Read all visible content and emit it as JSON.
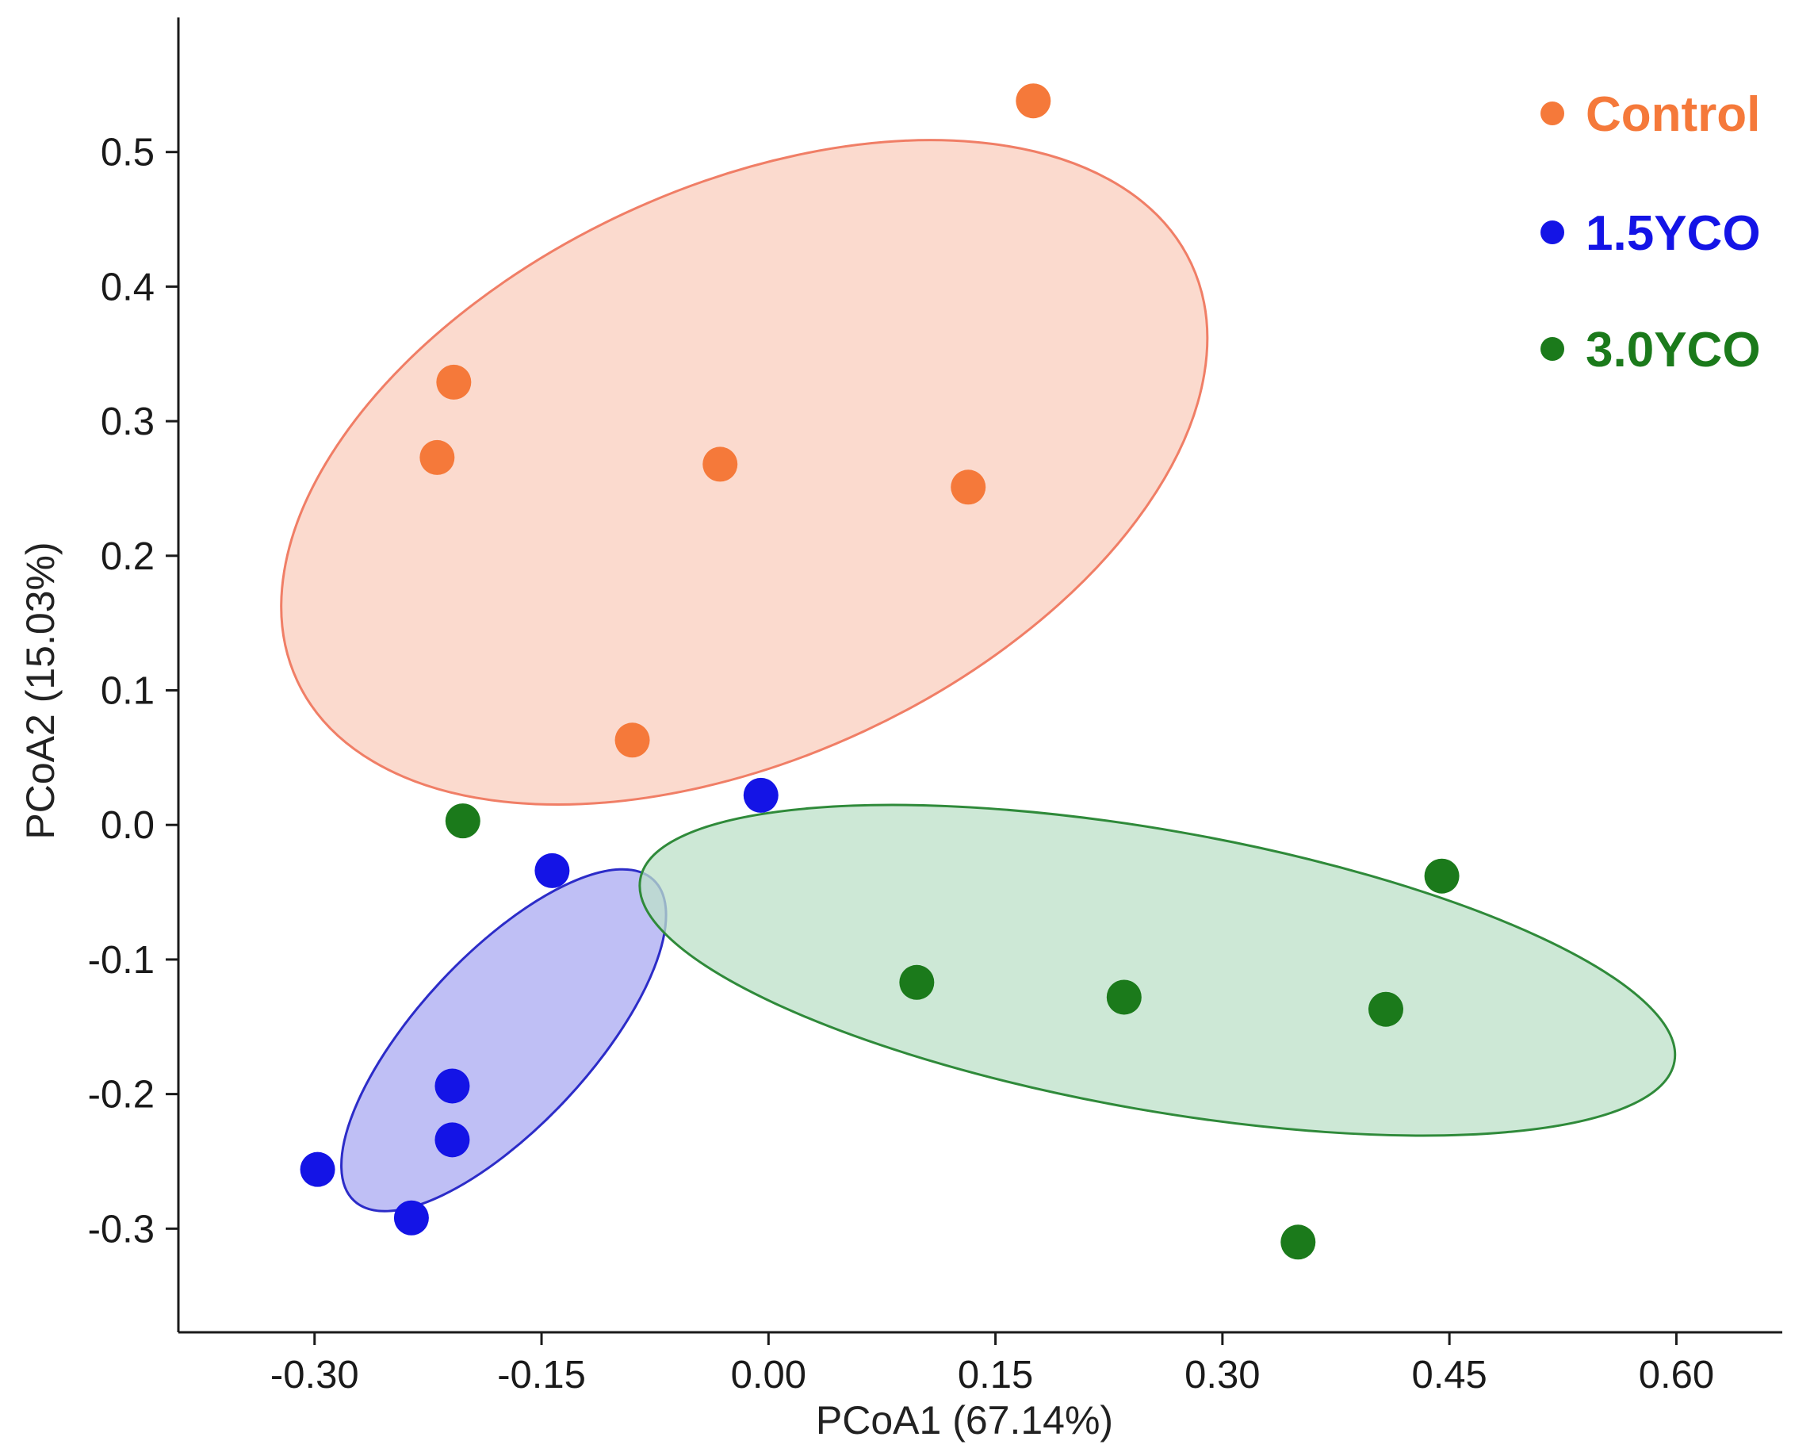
{
  "chart_data": {
    "type": "scatter",
    "title": "",
    "xlabel": "PCoA1 (67.14%)",
    "ylabel": "PCoA2 (15.03%)",
    "xlim": [
      -0.39,
      0.67
    ],
    "ylim": [
      -0.377,
      0.6
    ],
    "xticks": [
      -0.3,
      -0.15,
      0.0,
      0.15,
      0.3,
      0.45,
      0.6
    ],
    "xtick_labels": [
      "-0.30",
      "-0.15",
      "0.00",
      "0.15",
      "0.30",
      "0.45",
      "0.60"
    ],
    "yticks": [
      -0.3,
      -0.2,
      -0.1,
      0.0,
      0.1,
      0.2,
      0.3,
      0.4,
      0.5
    ],
    "ytick_labels": [
      "-0.3",
      "-0.2",
      "-0.1",
      "0.0",
      "0.1",
      "0.2",
      "0.3",
      "0.4",
      "0.5"
    ],
    "grid": false,
    "legend_position": "top-right",
    "series": [
      {
        "name": "Control",
        "color": "#F5793A",
        "ellipse_fill": "#F9CDBE",
        "ellipse_stroke": "#F07E66",
        "ellipse": {
          "center": [
            -0.016,
            0.262
          ],
          "semi_axes": [
            0.326,
            0.212
          ],
          "angle_deg": 25
        },
        "points": [
          {
            "x": 0.175,
            "y": 0.538
          },
          {
            "x": -0.208,
            "y": 0.329
          },
          {
            "x": -0.219,
            "y": 0.273
          },
          {
            "x": -0.032,
            "y": 0.268
          },
          {
            "x": 0.132,
            "y": 0.251
          },
          {
            "x": -0.09,
            "y": 0.063
          }
        ]
      },
      {
        "name": "1.5YCO",
        "color": "#1414E6",
        "ellipse_fill": "#AAAAF2",
        "ellipse_stroke": "#2C2CC8",
        "ellipse": {
          "center": [
            -0.175,
            -0.16
          ],
          "semi_axes": [
            0.145,
            0.064
          ],
          "angle_deg": 47
        },
        "points": [
          {
            "x": -0.005,
            "y": 0.022
          },
          {
            "x": -0.143,
            "y": -0.034
          },
          {
            "x": -0.209,
            "y": -0.194
          },
          {
            "x": -0.209,
            "y": -0.234
          },
          {
            "x": -0.298,
            "y": -0.256
          },
          {
            "x": -0.236,
            "y": -0.292
          }
        ]
      },
      {
        "name": "3.0YCO",
        "color": "#1B7A1B",
        "ellipse_fill": "#BCE0C8",
        "ellipse_stroke": "#2F8A3A",
        "ellipse": {
          "center": [
            0.257,
            -0.108
          ],
          "semi_axes": [
            0.347,
            0.104
          ],
          "angle_deg": -10
        },
        "points": [
          {
            "x": -0.202,
            "y": 0.003
          },
          {
            "x": 0.445,
            "y": -0.038
          },
          {
            "x": 0.098,
            "y": -0.117
          },
          {
            "x": 0.235,
            "y": -0.128
          },
          {
            "x": 0.408,
            "y": -0.137
          },
          {
            "x": 0.35,
            "y": -0.31
          }
        ]
      }
    ]
  }
}
